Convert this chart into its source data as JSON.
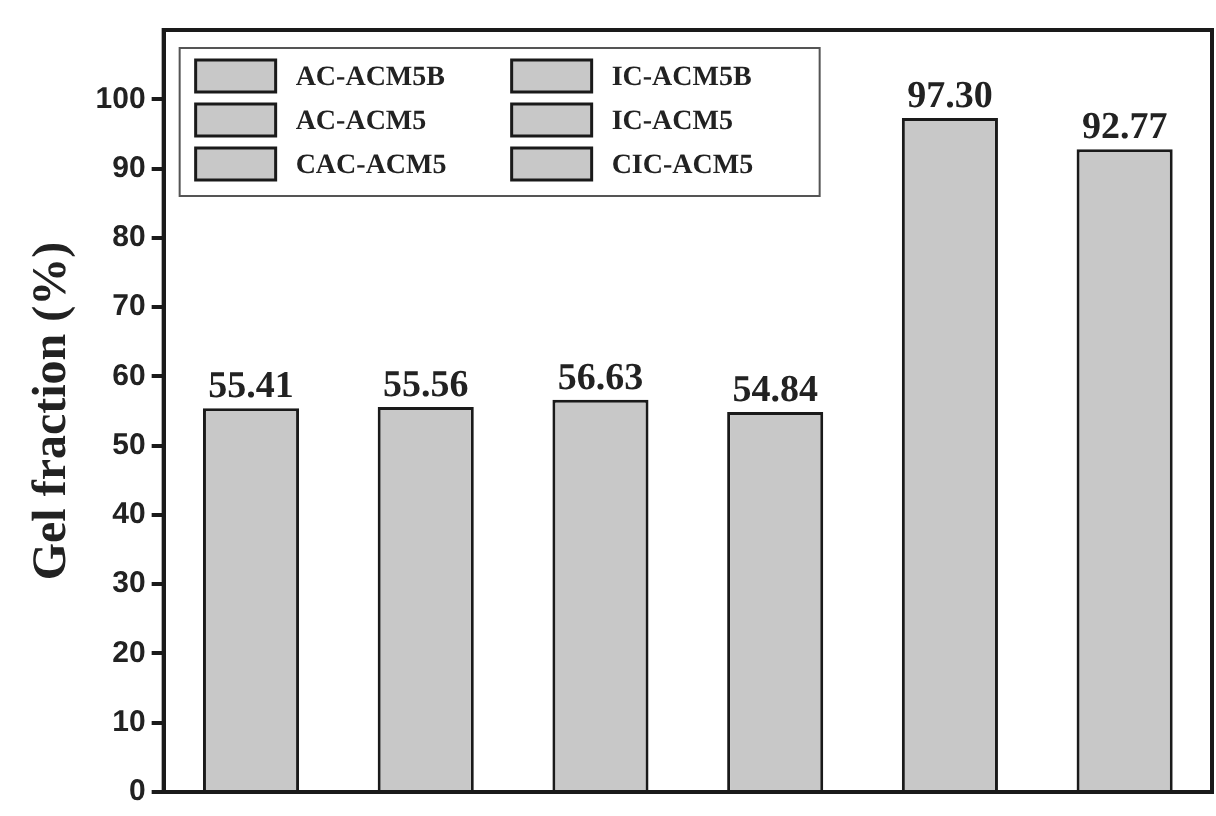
{
  "chart_data": {
    "type": "bar",
    "stacked": true,
    "ylabel": "Gel fraction (%)",
    "categories": [
      null,
      null,
      null,
      null,
      null,
      null
    ],
    "ylim": [
      0,
      110
    ],
    "yticks": [
      0,
      10,
      20,
      30,
      40,
      50,
      60,
      70,
      80,
      90,
      100
    ],
    "legend": "top left",
    "grid": false,
    "series": [
      {
        "name": "AC-ACM5B",
        "color": "#c8c8c8",
        "values": [
          55.41,
          null,
          null,
          null,
          null,
          null
        ],
        "value_labels": [
          "55.41",
          null,
          null,
          null,
          null,
          null
        ]
      },
      {
        "name": "AC-ACM5",
        "color": "#c8c8c8",
        "values": [
          null,
          55.56,
          null,
          null,
          null,
          null
        ],
        "value_labels": [
          null,
          "55.56",
          null,
          null,
          null,
          null
        ]
      },
      {
        "name": "CAC-ACM5",
        "color": "#c8c8c8",
        "values": [
          null,
          null,
          56.63,
          null,
          null,
          null
        ],
        "value_labels": [
          null,
          null,
          "56.63",
          null,
          null,
          null
        ]
      },
      {
        "name": "IC-ACM5B",
        "color": "#c8c8c8",
        "values": [
          null,
          null,
          null,
          54.84,
          null,
          null
        ],
        "value_labels": [
          null,
          null,
          null,
          "54.84",
          null,
          null
        ]
      },
      {
        "name": "IC-ACM5",
        "color": "#c8c8c8",
        "values": [
          null,
          null,
          null,
          null,
          97.3,
          null
        ],
        "value_labels": [
          null,
          null,
          null,
          null,
          "97.30",
          null
        ]
      },
      {
        "name": "CIC-ACM5",
        "color": "#c8c8c8",
        "values": [
          null,
          null,
          null,
          null,
          null,
          92.77
        ],
        "value_labels": [
          null,
          null,
          null,
          null,
          null,
          "92.77"
        ]
      }
    ]
  }
}
